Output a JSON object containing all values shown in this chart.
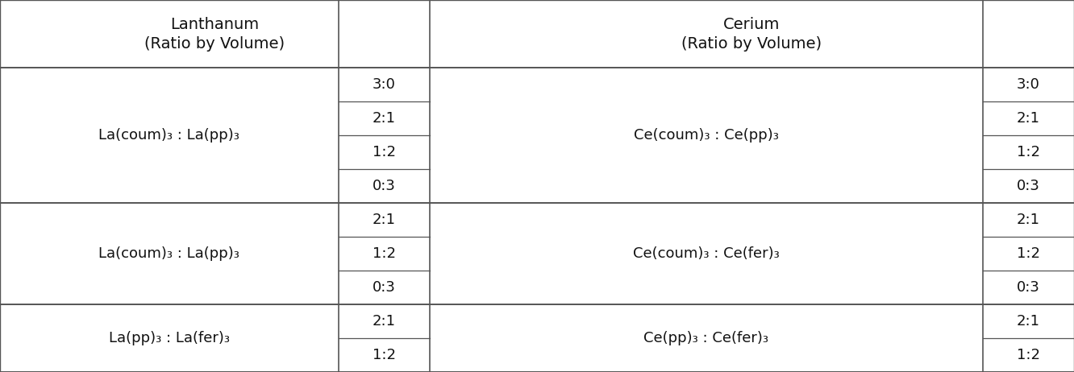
{
  "col_headers": [
    [
      "Lanthanum",
      "(Ratio by Volume)"
    ],
    [
      "Cerium",
      "(Ratio by Volume)"
    ]
  ],
  "rows": [
    {
      "la_compound": "La(coum)₃ : La(pp)₃",
      "la_ratios": [
        "3:0",
        "2:1",
        "1:2",
        "0:3"
      ],
      "ce_compound": "Ce(coum)₃ : Ce(pp)₃",
      "ce_ratios": [
        "3:0",
        "2:1",
        "1:2",
        "0:3"
      ]
    },
    {
      "la_compound": "La(coum)₃ : La(pp)₃",
      "la_ratios": [
        "2:1",
        "1:2",
        "0:3"
      ],
      "ce_compound": "Ce(coum)₃ : Ce(fer)₃",
      "ce_ratios": [
        "2:1",
        "1:2",
        "0:3"
      ]
    },
    {
      "la_compound": "La(pp)₃ : La(fer)₃",
      "la_ratios": [
        "2:1",
        "1:2"
      ],
      "ce_compound": "Ce(pp)₃ : Ce(fer)₃",
      "ce_ratios": [
        "2:1",
        "1:2"
      ]
    }
  ],
  "figsize": [
    13.32,
    4.62
  ],
  "dpi": 100,
  "background_color": "#ffffff",
  "line_color": "#555555",
  "text_color": "#111111",
  "header_fontsize": 14,
  "cell_fontsize": 13,
  "col_props": [
    0.315,
    0.085,
    0.515,
    0.085
  ]
}
